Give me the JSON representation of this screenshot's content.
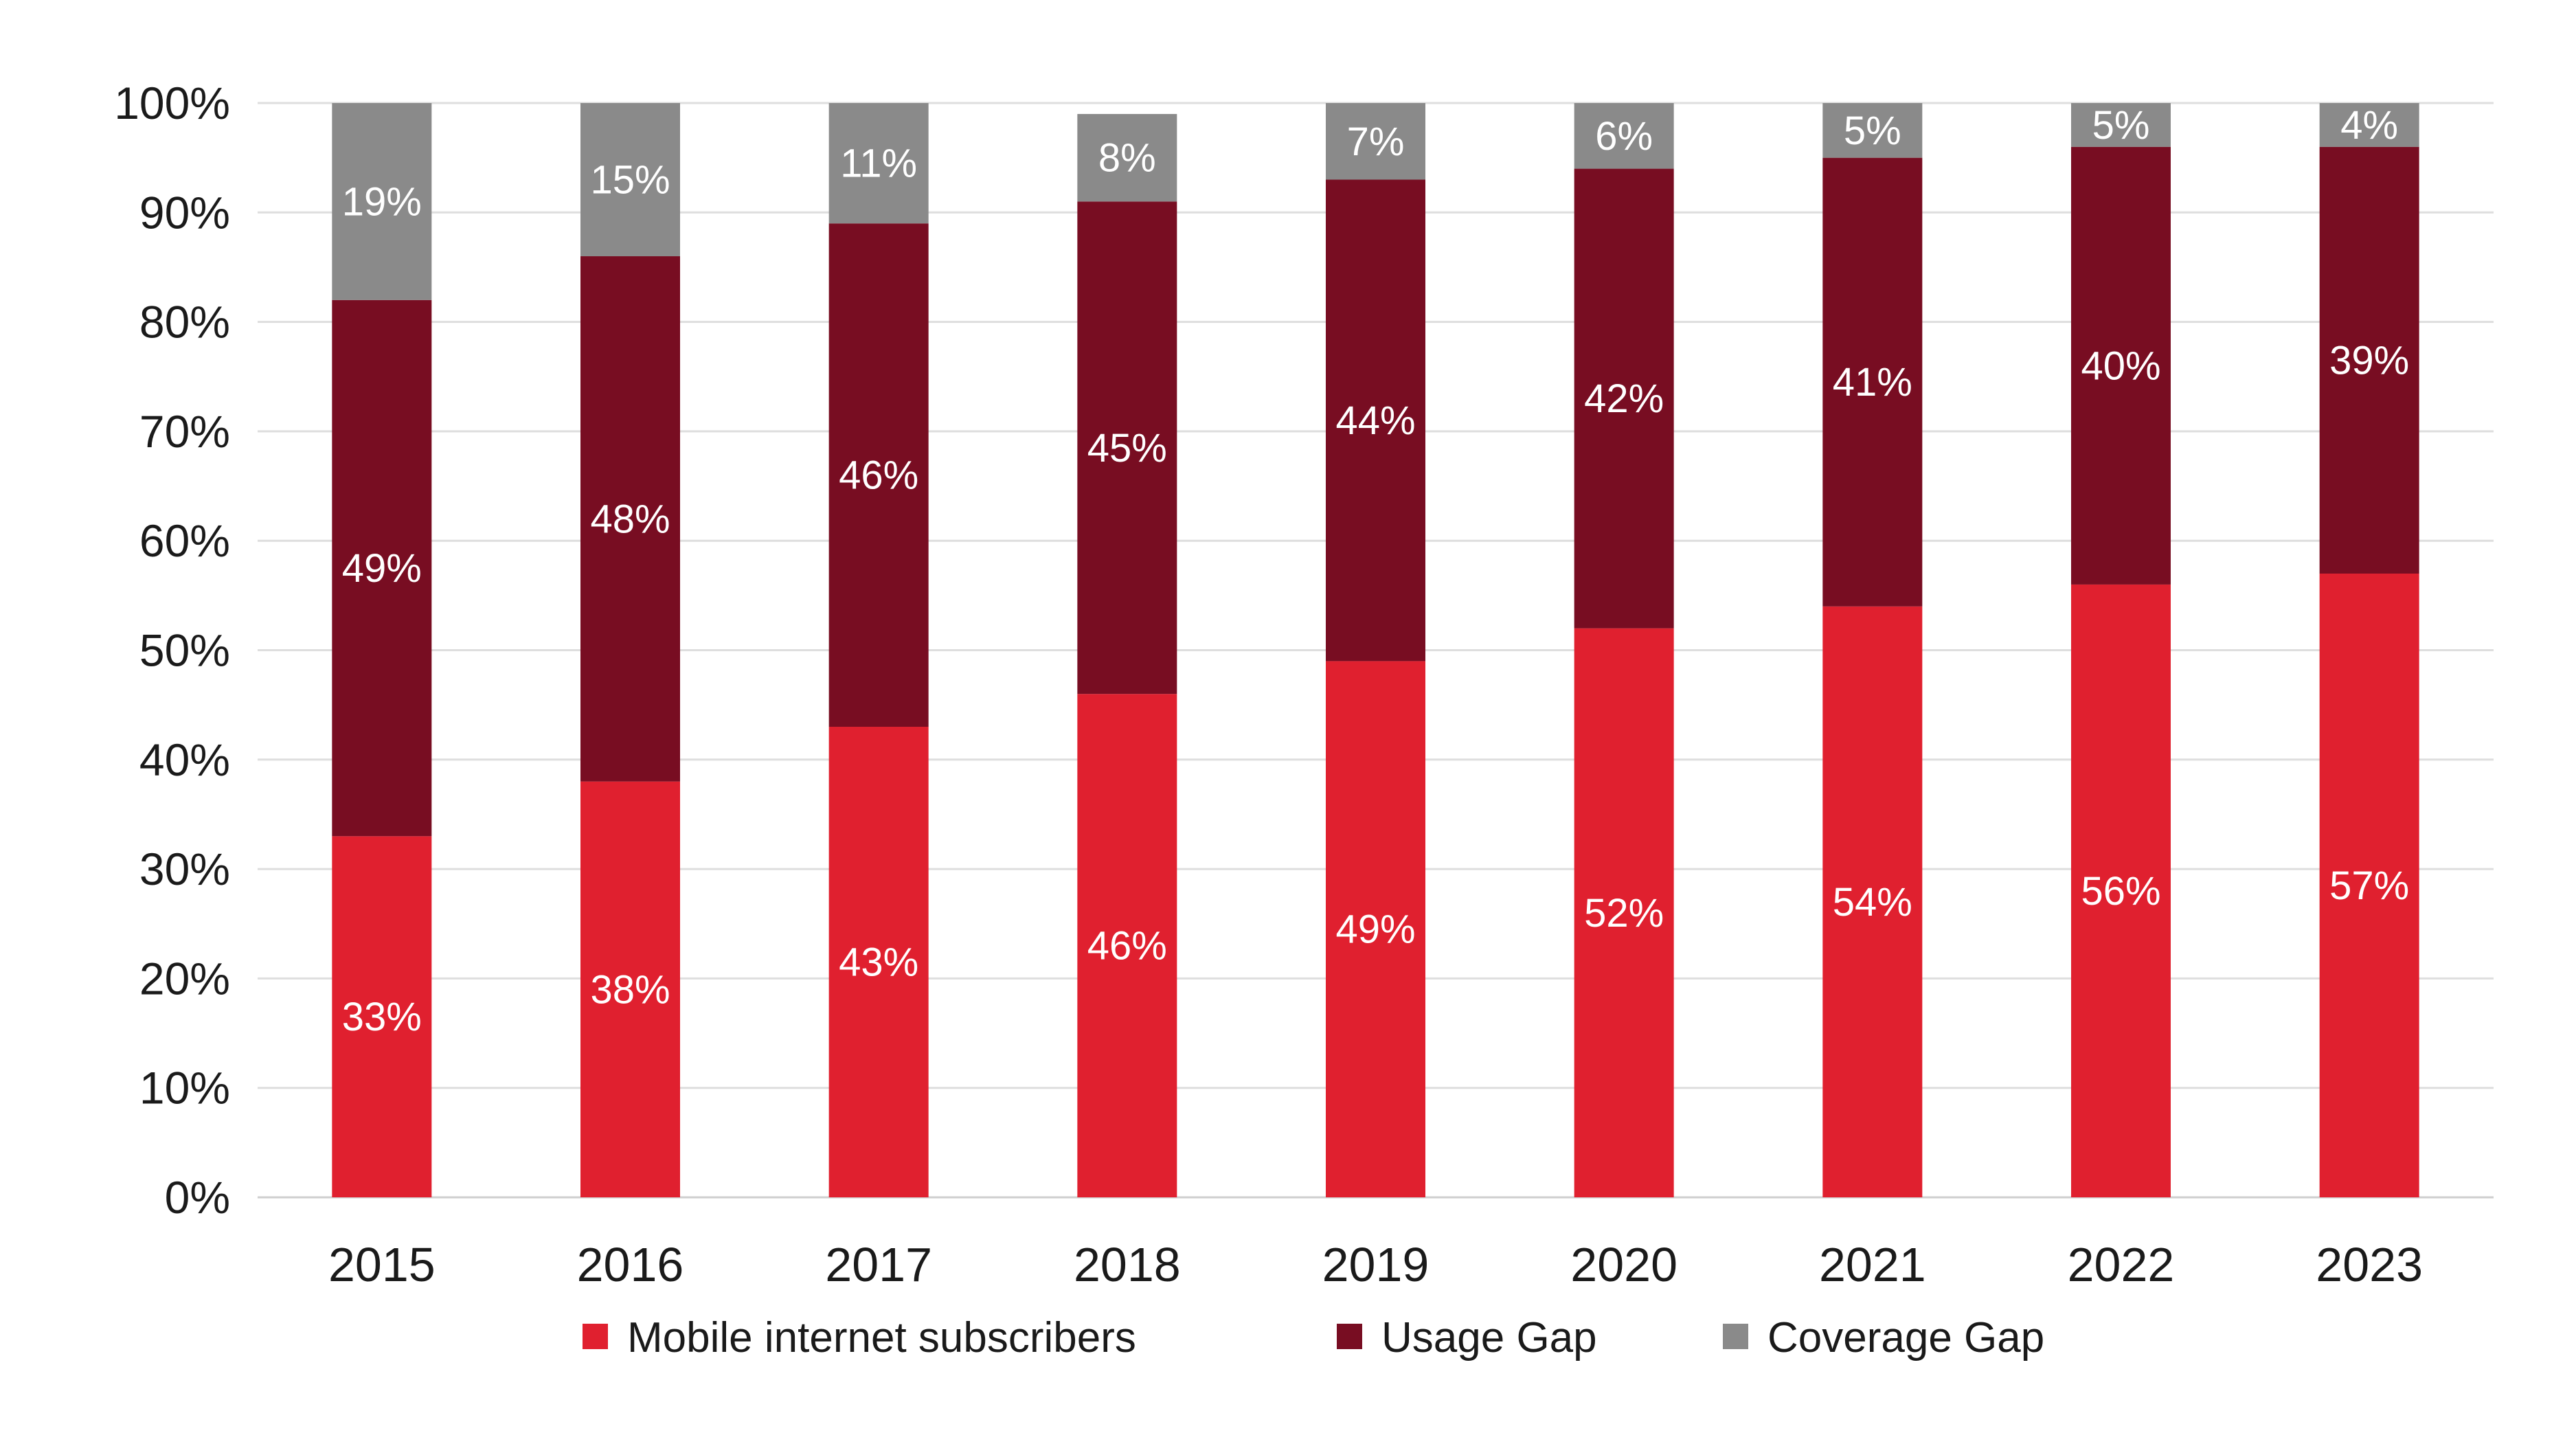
{
  "chart_data": {
    "type": "bar",
    "stacked": true,
    "title": "",
    "xlabel": "",
    "ylabel": "",
    "ylim": [
      0,
      100
    ],
    "y_ticks": [
      "0%",
      "10%",
      "20%",
      "30%",
      "40%",
      "50%",
      "60%",
      "70%",
      "80%",
      "90%",
      "100%"
    ],
    "grid": true,
    "legend_position": "bottom",
    "categories": [
      "2015",
      "2016",
      "2017",
      "2018",
      "2019",
      "2020",
      "2021",
      "2022",
      "2023"
    ],
    "series": [
      {
        "name": "Mobile internet subscribers",
        "color": "#e0202f",
        "values": [
          33,
          38,
          43,
          46,
          49,
          52,
          54,
          56,
          57
        ],
        "labels": [
          "33%",
          "38%",
          "43%",
          "46%",
          "49%",
          "52%",
          "54%",
          "56%",
          "57%"
        ]
      },
      {
        "name": "Usage Gap",
        "color": "#780d22",
        "values": [
          49,
          48,
          46,
          45,
          44,
          42,
          41,
          40,
          39
        ],
        "labels": [
          "49%",
          "48%",
          "46%",
          "45%",
          "44%",
          "42%",
          "41%",
          "40%",
          "39%"
        ]
      },
      {
        "name": "Coverage Gap",
        "color": "#8a8a8a",
        "values": [
          19,
          15,
          11,
          8,
          7,
          6,
          5,
          5,
          4
        ],
        "labels": [
          "19%",
          "15%",
          "11%",
          "8%",
          "7%",
          "6%",
          "5%",
          "5%",
          "4%"
        ]
      }
    ]
  }
}
